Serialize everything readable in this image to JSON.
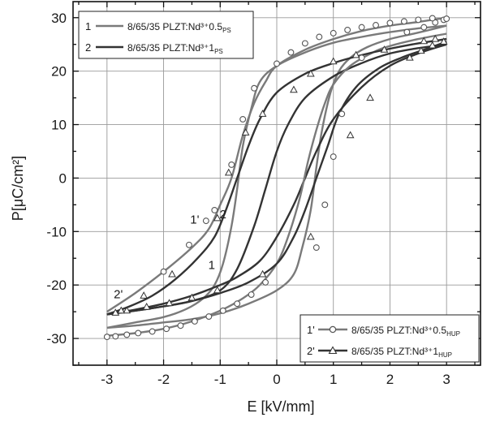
{
  "chart_data": {
    "type": "line",
    "xlabel": "E [kV/mm]",
    "ylabel": "P[μC/cm²]",
    "xlim": [
      -3.6,
      3.6
    ],
    "ylim": [
      -35,
      33
    ],
    "xticks": [
      -3,
      -2,
      -1,
      0,
      1,
      2,
      3
    ],
    "yticks": [
      -30,
      -20,
      -10,
      0,
      10,
      20,
      30
    ],
    "grid": true,
    "legends": [
      {
        "placement": "top-left",
        "entries": [
          {
            "id": "1",
            "text": "8/65/35 PLZT:Nd³⁺0.5",
            "sub": "PS"
          },
          {
            "id": "2",
            "text": "8/65/35 PLZT:Nd³⁺1",
            "sub": "PS"
          }
        ]
      },
      {
        "placement": "bottom-right",
        "entries": [
          {
            "id": "1'",
            "text": "8/65/35 PLZT:Nd³⁺0.5",
            "sub": "HUP"
          },
          {
            "id": "2'",
            "text": "8/65/35 PLZT:Nd³⁺1",
            "sub": "HUP"
          }
        ]
      }
    ],
    "curve_labels": [
      {
        "text": "1",
        "x": -1.15,
        "y": -17
      },
      {
        "text": "2",
        "x": -0.95,
        "y": -7.5
      },
      {
        "text": "1'",
        "x": -1.45,
        "y": -8.5
      },
      {
        "text": "2'",
        "x": -2.8,
        "y": -22.5
      }
    ],
    "series": [
      {
        "name": "1",
        "color": "#7a7a7a",
        "marker": "none",
        "upper": [
          [
            -3,
            -28
          ],
          [
            -2.5,
            -27
          ],
          [
            -2,
            -26
          ],
          [
            -1.6,
            -24.5
          ],
          [
            -1.3,
            -22.5
          ],
          [
            -1.1,
            -20
          ],
          [
            -0.95,
            -16
          ],
          [
            -0.8,
            -9
          ],
          [
            -0.7,
            -2
          ],
          [
            -0.6,
            6
          ],
          [
            -0.45,
            13
          ],
          [
            -0.3,
            18
          ],
          [
            0,
            21
          ],
          [
            0.5,
            23.5
          ],
          [
            1,
            25.3
          ],
          [
            1.5,
            26.4
          ],
          [
            2,
            27.3
          ],
          [
            2.5,
            28
          ],
          [
            3,
            28.5
          ]
        ],
        "lower": [
          [
            3,
            28.5
          ],
          [
            2.5,
            27.2
          ],
          [
            2,
            26
          ],
          [
            1.6,
            24.5
          ],
          [
            1.3,
            22.5
          ],
          [
            1.1,
            20
          ],
          [
            0.95,
            16
          ],
          [
            0.8,
            9
          ],
          [
            0.7,
            2
          ],
          [
            0.6,
            -6
          ],
          [
            0.45,
            -13
          ],
          [
            0.3,
            -18
          ],
          [
            0,
            -21
          ],
          [
            -0.5,
            -23.5
          ],
          [
            -1,
            -25.3
          ],
          [
            -1.5,
            -26.4
          ],
          [
            -2,
            -27
          ],
          [
            -2.5,
            -27.6
          ],
          [
            -3,
            -28
          ]
        ]
      },
      {
        "name": "2",
        "color": "#333333",
        "marker": "none",
        "upper": [
          [
            -3,
            -25.5
          ],
          [
            -2.5,
            -24.8
          ],
          [
            -2,
            -24
          ],
          [
            -1.5,
            -23
          ],
          [
            -1,
            -21
          ],
          [
            -0.7,
            -17
          ],
          [
            -0.4,
            -9
          ],
          [
            -0.2,
            -2
          ],
          [
            0,
            5
          ],
          [
            0.2,
            10
          ],
          [
            0.5,
            15
          ],
          [
            1,
            19
          ],
          [
            1.5,
            21.5
          ],
          [
            2,
            23.3
          ],
          [
            2.5,
            24.3
          ],
          [
            3,
            25
          ]
        ],
        "lower": [
          [
            3,
            25
          ],
          [
            2.5,
            23.3
          ],
          [
            2,
            21
          ],
          [
            1.5,
            17
          ],
          [
            1,
            11
          ],
          [
            0.7,
            5
          ],
          [
            0.5,
            0
          ],
          [
            0.3,
            -5
          ],
          [
            0,
            -11
          ],
          [
            -0.3,
            -15.5
          ],
          [
            -0.7,
            -18.5
          ],
          [
            -1,
            -20
          ],
          [
            -1.5,
            -22
          ],
          [
            -2,
            -23.5
          ],
          [
            -2.5,
            -24.6
          ],
          [
            -3,
            -25.5
          ]
        ]
      },
      {
        "name": "1'",
        "color": "#7a7a7a",
        "marker": "circle",
        "upper": [
          [
            -3,
            -29.5
          ],
          [
            -2.5,
            -29
          ],
          [
            -2,
            -28.2
          ],
          [
            -1.5,
            -26.8
          ],
          [
            -1,
            -24.8
          ],
          [
            -0.6,
            -22.5
          ],
          [
            -0.3,
            -20
          ],
          [
            0,
            -16
          ],
          [
            0.2,
            -11
          ],
          [
            0.4,
            -4
          ],
          [
            0.55,
            3
          ],
          [
            0.7,
            9
          ],
          [
            0.85,
            14
          ],
          [
            1,
            17.5
          ],
          [
            1.3,
            21
          ],
          [
            1.7,
            23.5
          ],
          [
            2,
            24.7
          ],
          [
            2.5,
            26
          ],
          [
            3,
            27
          ]
        ],
        "lower": [
          [
            3,
            30
          ],
          [
            2.5,
            29.2
          ],
          [
            2,
            28.5
          ],
          [
            1.5,
            27.5
          ],
          [
            1,
            26
          ],
          [
            0.5,
            24
          ],
          [
            0,
            21
          ],
          [
            -0.2,
            18
          ],
          [
            -0.4,
            14
          ],
          [
            -0.6,
            8
          ],
          [
            -0.8,
            0
          ],
          [
            -1,
            -5
          ],
          [
            -1.2,
            -9.5
          ],
          [
            -1.5,
            -13
          ],
          [
            -2,
            -17.5
          ],
          [
            -2.5,
            -21.5
          ],
          [
            -3,
            -25
          ]
        ],
        "markers_upper": [
          [
            -3,
            -29.7
          ],
          [
            -2.85,
            -29.6
          ],
          [
            -2.65,
            -29.3
          ],
          [
            -2.45,
            -29
          ],
          [
            -2.2,
            -28.7
          ],
          [
            -1.95,
            -28.2
          ],
          [
            -1.7,
            -27.6
          ],
          [
            -1.45,
            -26.8
          ],
          [
            -1.2,
            -25.9
          ],
          [
            -0.95,
            -24.8
          ],
          [
            -0.7,
            -23.5
          ],
          [
            -0.45,
            -21.8
          ],
          [
            -0.2,
            -19.5
          ],
          [
            0.7,
            -13
          ],
          [
            0.85,
            -5
          ],
          [
            1.0,
            4
          ],
          [
            1.15,
            12
          ],
          [
            1.5,
            22.5
          ],
          [
            2.3,
            27.3
          ],
          [
            2.6,
            28.2
          ],
          [
            2.8,
            29.1
          ],
          [
            2.95,
            29.6
          ],
          [
            3,
            29.8
          ]
        ],
        "markers_lower": [
          [
            2.75,
            29.9
          ],
          [
            2.5,
            29.6
          ],
          [
            2.25,
            29.3
          ],
          [
            2,
            29
          ],
          [
            1.75,
            28.6
          ],
          [
            1.5,
            28.2
          ],
          [
            1.25,
            27.7
          ],
          [
            1.0,
            27.1
          ],
          [
            0.75,
            26.4
          ],
          [
            0.5,
            25.2
          ],
          [
            0.25,
            23.5
          ],
          [
            0,
            21.4
          ],
          [
            -0.4,
            16.8
          ],
          [
            -0.6,
            11
          ],
          [
            -0.8,
            2.5
          ],
          [
            -1.1,
            -6
          ],
          [
            -1.25,
            -8
          ],
          [
            -1.55,
            -12.5
          ],
          [
            -2.0,
            -17.5
          ]
        ]
      },
      {
        "name": "2'",
        "color": "#333333",
        "marker": "triangle",
        "upper": [
          [
            -3,
            -25.5
          ],
          [
            -2.5,
            -24.8
          ],
          [
            -2,
            -24
          ],
          [
            -1.5,
            -23
          ],
          [
            -1,
            -21.5
          ],
          [
            -0.5,
            -19.5
          ],
          [
            0,
            -16
          ],
          [
            0.3,
            -11
          ],
          [
            0.5,
            -6
          ],
          [
            0.7,
            0
          ],
          [
            0.9,
            6
          ],
          [
            1.1,
            12
          ],
          [
            1.4,
            17
          ],
          [
            1.8,
            20.5
          ],
          [
            2.2,
            22.5
          ],
          [
            2.6,
            24
          ],
          [
            3,
            25.5
          ]
        ],
        "lower": [
          [
            3,
            26
          ],
          [
            2.5,
            25.2
          ],
          [
            2,
            24.2
          ],
          [
            1.5,
            23
          ],
          [
            1,
            21.5
          ],
          [
            0.5,
            19.5
          ],
          [
            0,
            16
          ],
          [
            -0.3,
            11
          ],
          [
            -0.5,
            6
          ],
          [
            -0.7,
            0
          ],
          [
            -0.9,
            -6
          ],
          [
            -1.1,
            -11
          ],
          [
            -1.4,
            -15
          ],
          [
            -1.8,
            -19
          ],
          [
            -2.2,
            -22
          ],
          [
            -2.6,
            -24
          ],
          [
            -3,
            -25.5
          ]
        ],
        "markers_upper": [
          [
            -2.85,
            -25.2
          ],
          [
            -2.65,
            -24.8
          ],
          [
            -2.3,
            -24.1
          ],
          [
            -1.9,
            -23.4
          ],
          [
            -1.5,
            -22.4
          ],
          [
            -1.05,
            -21
          ],
          [
            -0.25,
            -18
          ],
          [
            0.6,
            -11
          ],
          [
            1.3,
            8
          ],
          [
            1.65,
            15
          ],
          [
            2.35,
            22.5
          ],
          [
            2.55,
            23.8
          ],
          [
            2.75,
            24.8
          ],
          [
            2.95,
            25.5
          ]
        ],
        "markers_lower": [
          [
            2.8,
            26
          ],
          [
            2.6,
            25.6
          ],
          [
            1.9,
            24
          ],
          [
            1.4,
            23
          ],
          [
            1.0,
            21.8
          ],
          [
            0.6,
            19.5
          ],
          [
            0.3,
            16.5
          ],
          [
            -0.25,
            12
          ],
          [
            -0.55,
            8.5
          ],
          [
            -0.85,
            1
          ],
          [
            -1.05,
            -7.5
          ],
          [
            -1.85,
            -18
          ],
          [
            -2.35,
            -22
          ],
          [
            -2.75,
            -24.8
          ]
        ]
      }
    ]
  }
}
